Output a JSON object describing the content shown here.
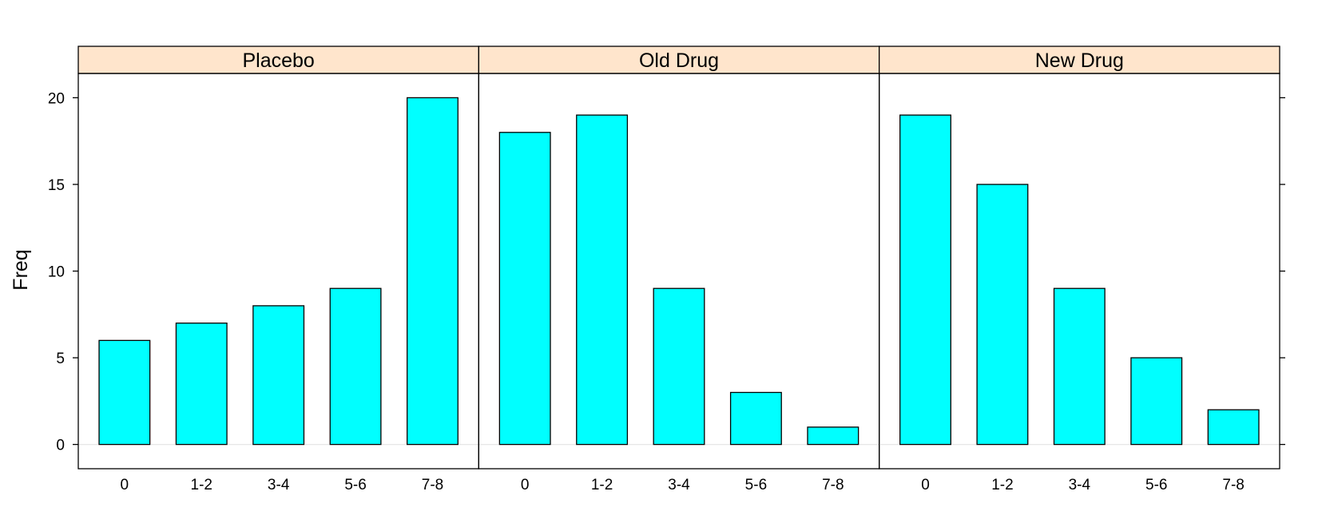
{
  "chart_data": {
    "type": "bar",
    "ylabel": "Freq",
    "xlabel": "",
    "categories": [
      "0",
      "1-2",
      "3-4",
      "5-6",
      "7-8"
    ],
    "ylim": [
      -1.4,
      21.4
    ],
    "yticks": [
      0,
      5,
      10,
      15,
      20
    ],
    "grid": false,
    "colors": {
      "bar_fill": "#00ffff",
      "bar_stroke": "#000000",
      "strip_fill": "#ffe5cc",
      "zero_line": "#e6e6e6"
    },
    "panels": [
      {
        "name": "Placebo",
        "values": [
          6,
          7,
          8,
          9,
          20
        ]
      },
      {
        "name": "Old Drug",
        "values": [
          18,
          19,
          9,
          3,
          1
        ]
      },
      {
        "name": "New Drug",
        "values": [
          19,
          15,
          9,
          5,
          2
        ]
      }
    ]
  }
}
